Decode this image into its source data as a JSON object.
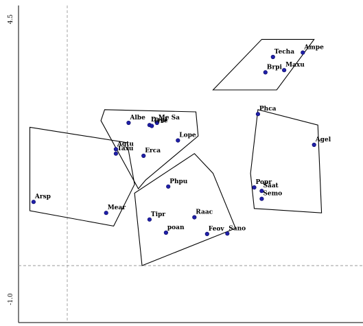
{
  "chart_data": {
    "type": "scatter",
    "title": "",
    "xlabel": "",
    "ylabel": "",
    "y_tick_labels": [
      "4.5",
      "-1.0"
    ],
    "ylim": [
      -1.5,
      5.0
    ],
    "reference_lines": {
      "x": 0,
      "y": 0
    },
    "point_color": "#1f1fa8",
    "points": [
      {
        "label": "Techa",
        "x": 2.75,
        "y": 4.75
      },
      {
        "label": "Ampe",
        "x": 3.15,
        "y": 4.85
      },
      {
        "label": "Brpi",
        "x": 2.65,
        "y": 4.4
      },
      {
        "label": "Maxu",
        "x": 2.9,
        "y": 4.45
      },
      {
        "label": "Albe",
        "x": 0.82,
        "y": 3.25
      },
      {
        "label": "Dagl",
        "x": 1.1,
        "y": 3.2
      },
      {
        "label": "Me Sa",
        "x": 1.2,
        "y": 3.25
      },
      {
        "label": "Trre",
        "x": 1.13,
        "y": 3.18
      },
      {
        "label": "Lope",
        "x": 1.48,
        "y": 2.85
      },
      {
        "label": "Erca",
        "x": 1.02,
        "y": 2.5
      },
      {
        "label": "Agtu",
        "x": 0.65,
        "y": 2.65
      },
      {
        "label": "Taxu",
        "x": 0.65,
        "y": 2.55
      },
      {
        "label": "Arsp",
        "x": -0.45,
        "y": 1.45
      },
      {
        "label": "Mear",
        "x": 0.52,
        "y": 1.2
      },
      {
        "label": "Phca",
        "x": 2.55,
        "y": 3.45
      },
      {
        "label": "Agel",
        "x": 3.3,
        "y": 2.75
      },
      {
        "label": "Popr",
        "x": 2.5,
        "y": 1.78
      },
      {
        "label": "Saat",
        "x": 2.6,
        "y": 1.7
      },
      {
        "label": "Semo",
        "x": 2.6,
        "y": 1.52
      },
      {
        "label": "Phpu",
        "x": 1.35,
        "y": 1.8
      },
      {
        "label": "Tipr",
        "x": 1.1,
        "y": 1.05
      },
      {
        "label": "Raac",
        "x": 1.7,
        "y": 1.1
      },
      {
        "label": "poan",
        "x": 1.32,
        "y": 0.75
      },
      {
        "label": "Feov",
        "x": 1.87,
        "y": 0.72
      },
      {
        "label": "Sano",
        "x": 2.14,
        "y": 0.73
      }
    ],
    "hulls": [
      [
        [
          2.6,
          5.15
        ],
        [
          3.3,
          5.15
        ],
        [
          2.8,
          4.0
        ],
        [
          1.95,
          4.0
        ]
      ],
      [
        [
          0.5,
          3.55
        ],
        [
          1.72,
          3.5
        ],
        [
          1.75,
          2.95
        ],
        [
          1.05,
          1.95
        ],
        [
          0.95,
          1.75
        ],
        [
          0.45,
          3.3
        ]
      ],
      [
        [
          -0.5,
          3.15
        ],
        [
          0.8,
          2.8
        ],
        [
          0.9,
          1.85
        ],
        [
          0.62,
          0.9
        ],
        [
          -0.5,
          1.25
        ]
      ],
      [
        [
          2.55,
          3.55
        ],
        [
          3.35,
          3.2
        ],
        [
          3.4,
          1.2
        ],
        [
          2.5,
          1.3
        ],
        [
          2.45,
          2.1
        ]
      ],
      [
        [
          1.7,
          2.55
        ],
        [
          1.95,
          2.1
        ],
        [
          2.25,
          0.85
        ],
        [
          1.0,
          0.0
        ],
        [
          0.9,
          1.65
        ]
      ]
    ]
  }
}
